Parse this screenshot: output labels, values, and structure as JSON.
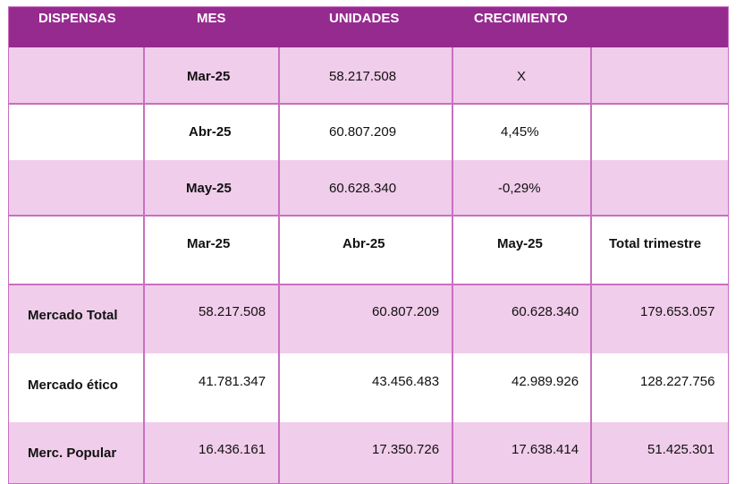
{
  "header": {
    "dispensas": "DISPENSAS",
    "mes": "MES",
    "unidades": "UNIDADES",
    "crecimiento": "CRECIMIENTO"
  },
  "monthly_rows": [
    {
      "mes": "Mar-25",
      "unidades": "58.217.508",
      "crecimiento": "X"
    },
    {
      "mes": "Abr-25",
      "unidades": "60.807.209",
      "crecimiento": "4,45%"
    },
    {
      "mes": "May-25",
      "unidades": "60.628.340",
      "crecimiento": "-0,29%"
    }
  ],
  "quarter_header": {
    "m1": "Mar-25",
    "m2": "Abr-25",
    "m3": "May-25",
    "total": "Total trimestre"
  },
  "market_rows": [
    {
      "label": "Mercado Total",
      "m1": "58.217.508",
      "m2": "60.807.209",
      "m3": "60.628.340",
      "total": "179.653.057"
    },
    {
      "label": "Mercado ético",
      "m1": "41.781.347",
      "m2": "43.456.483",
      "m3": "42.989.926",
      "total": "128.227.756"
    },
    {
      "label": "Merc. Popular",
      "m1": "16.436.161",
      "m2": "17.350.726",
      "m3": "17.638.414",
      "total": "51.425.301"
    }
  ],
  "colors": {
    "header_bg": "#962b8f",
    "pink_row": "#f0cdea",
    "grid_line": "#c96fc2"
  }
}
